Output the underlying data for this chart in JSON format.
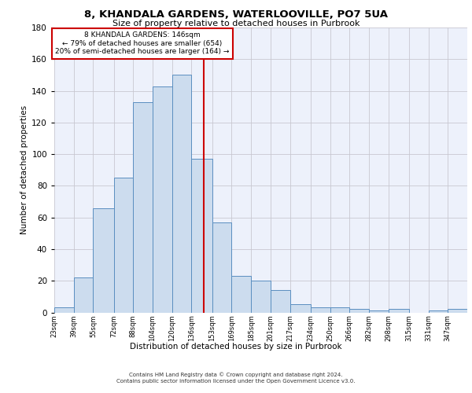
{
  "title": "8, KHANDALA GARDENS, WATERLOOVILLE, PO7 5UA",
  "subtitle": "Size of property relative to detached houses in Purbrook",
  "xlabel": "Distribution of detached houses by size in Purbrook",
  "ylabel": "Number of detached properties",
  "bar_labels": [
    "23sqm",
    "39sqm",
    "55sqm",
    "72sqm",
    "88sqm",
    "104sqm",
    "120sqm",
    "136sqm",
    "153sqm",
    "169sqm",
    "185sqm",
    "201sqm",
    "217sqm",
    "234sqm",
    "250sqm",
    "266sqm",
    "282sqm",
    "298sqm",
    "315sqm",
    "331sqm",
    "347sqm"
  ],
  "bar_heights": [
    3,
    22,
    66,
    85,
    133,
    143,
    150,
    97,
    57,
    23,
    20,
    14,
    5,
    3,
    3,
    2,
    1,
    2,
    0,
    1,
    2
  ],
  "bin_edges": [
    23,
    39,
    55,
    72,
    88,
    104,
    120,
    136,
    153,
    169,
    185,
    201,
    217,
    234,
    250,
    266,
    282,
    298,
    315,
    331,
    347
  ],
  "bar_color": "#ccdcee",
  "bar_edge_color": "#5a8ec0",
  "vline_x": 146,
  "vline_color": "#cc0000",
  "annotation_text": "8 KHANDALA GARDENS: 146sqm\n← 79% of detached houses are smaller (654)\n20% of semi-detached houses are larger (164) →",
  "annotation_box_color": "#ffffff",
  "annotation_box_edge": "#cc0000",
  "ylim": [
    0,
    180
  ],
  "yticks": [
    0,
    20,
    40,
    60,
    80,
    100,
    120,
    140,
    160,
    180
  ],
  "footer_line1": "Contains HM Land Registry data © Crown copyright and database right 2024.",
  "footer_line2": "Contains public sector information licensed under the Open Government Licence v3.0.",
  "bg_color": "#edf1fb",
  "grid_color": "#c8c8d0"
}
